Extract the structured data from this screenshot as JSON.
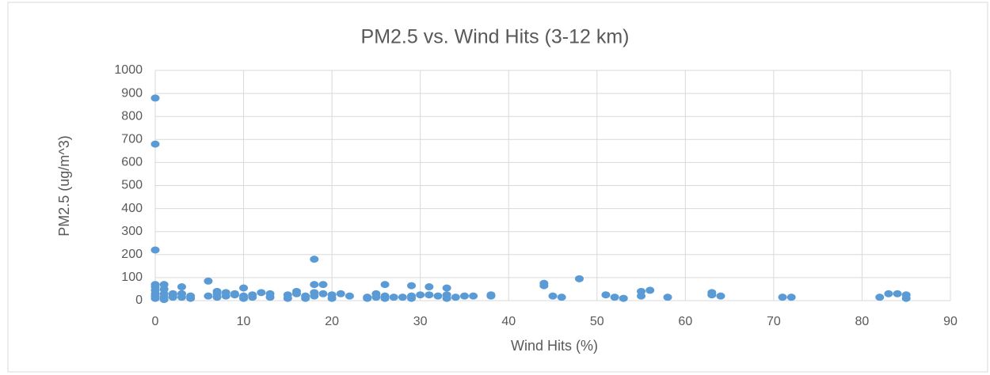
{
  "chart_data": {
    "type": "scatter",
    "title": "PM2.5 vs. Wind Hits (3-12 km)",
    "x_label": "Wind Hits (%)",
    "y_label": "PM2.5 (ug/m^3)",
    "color": "#5b9bd5",
    "grid": true,
    "xlim": [
      0,
      90
    ],
    "xticks": [
      0,
      10,
      20,
      30,
      40,
      50,
      60,
      70,
      80,
      90
    ],
    "ylim": [
      0,
      1000
    ],
    "yticks": [
      0,
      100,
      200,
      300,
      400,
      500,
      600,
      700,
      800,
      900,
      1000
    ],
    "x": [
      0,
      0,
      0,
      0,
      0,
      0,
      0,
      0,
      0,
      1,
      1,
      1,
      1,
      1,
      2,
      2,
      2,
      3,
      3,
      3,
      4,
      4,
      6,
      6,
      7,
      7,
      7,
      8,
      8,
      9,
      9,
      10,
      10,
      10,
      11,
      11,
      12,
      13,
      13,
      15,
      15,
      16,
      16,
      17,
      17,
      18,
      18,
      18,
      18,
      19,
      19,
      20,
      20,
      21,
      22,
      24,
      24,
      25,
      25,
      26,
      26,
      26,
      27,
      28,
      29,
      29,
      29,
      30,
      31,
      31,
      32,
      33,
      33,
      33,
      34,
      35,
      36,
      38,
      38,
      44,
      44,
      45,
      46,
      48,
      51,
      52,
      53,
      55,
      55,
      56,
      58,
      63,
      63,
      64,
      71,
      72,
      82,
      83,
      84,
      85,
      85
    ],
    "values": [
      880,
      680,
      220,
      70,
      60,
      45,
      30,
      20,
      10,
      70,
      50,
      30,
      15,
      5,
      30,
      15,
      25,
      60,
      30,
      15,
      20,
      10,
      85,
      20,
      30,
      15,
      40,
      20,
      35,
      25,
      30,
      55,
      20,
      10,
      15,
      25,
      35,
      30,
      15,
      25,
      10,
      40,
      30,
      20,
      10,
      180,
      70,
      35,
      20,
      70,
      30,
      25,
      10,
      30,
      20,
      15,
      10,
      30,
      15,
      70,
      20,
      10,
      15,
      15,
      65,
      20,
      10,
      25,
      60,
      25,
      20,
      55,
      25,
      10,
      15,
      20,
      20,
      25,
      20,
      75,
      65,
      20,
      15,
      95,
      25,
      15,
      10,
      40,
      20,
      45,
      15,
      35,
      25,
      20,
      15,
      15,
      15,
      30,
      30,
      25,
      10
    ]
  }
}
